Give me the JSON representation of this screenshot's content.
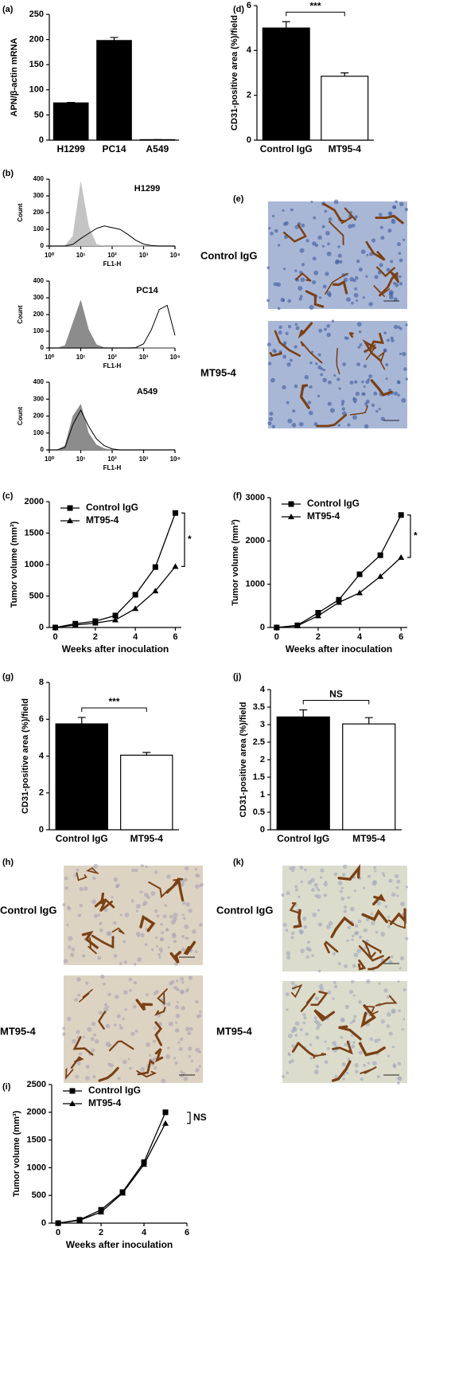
{
  "chart_data": [
    {
      "panel": "(a)",
      "type": "bar",
      "ylabel": "APN/β-actin mRNA",
      "categories": [
        "H1299",
        "PC14",
        "A549"
      ],
      "values": [
        74,
        198,
        1
      ],
      "errors": [
        1,
        6,
        0
      ],
      "colors": [
        "#000000",
        "#000000",
        "#000000"
      ],
      "ylim": [
        0,
        250
      ],
      "yticks": [
        0,
        50,
        100,
        150,
        200,
        250
      ]
    },
    {
      "panel": "(d)",
      "type": "bar",
      "ylabel": "CD31-positive area (%)/field",
      "categories": [
        "Control IgG",
        "MT95-4"
      ],
      "values": [
        5.0,
        2.85
      ],
      "errors": [
        0.28,
        0.15
      ],
      "colors": [
        "#000000",
        "#ffffff"
      ],
      "ylim": [
        0,
        6
      ],
      "yticks": [
        0,
        2,
        4,
        6
      ],
      "annotation": "***"
    },
    {
      "panel": "(b)",
      "type": "histogram",
      "title": "H1299",
      "xlabel": "FL1-H",
      "ylabel": "Count",
      "xscale": "log",
      "x": [
        1,
        1.778,
        3.162,
        5.623,
        10,
        17.78,
        31.62,
        56.23,
        100,
        177.8,
        316.2,
        562.3,
        1000,
        1778,
        3162,
        5623,
        10000
      ],
      "series": [
        {
          "color": "#c4c4c4",
          "fill": true,
          "values": [
            0,
            0,
            2,
            60,
            385,
            120,
            10,
            0,
            0,
            0,
            0,
            0,
            0,
            0,
            0,
            0,
            0
          ]
        },
        {
          "color": "#000000",
          "fill": false,
          "values": [
            0,
            0,
            0,
            10,
            45,
            75,
            105,
            120,
            110,
            100,
            70,
            35,
            12,
            3,
            0,
            0,
            0
          ]
        }
      ],
      "xlim": [
        1,
        10000
      ],
      "xticks": [
        {
          "value": 1,
          "label": "10⁰"
        },
        {
          "value": 10,
          "label": "10¹"
        },
        {
          "value": 100,
          "label": "10²"
        },
        {
          "value": 1000,
          "label": "10³"
        },
        {
          "value": 10000,
          "label": "10⁴"
        }
      ],
      "ylim": [
        0,
        400
      ],
      "yticks": [
        0,
        100,
        200,
        300,
        400
      ]
    },
    {
      "type": "histogram",
      "title": "PC14",
      "xlabel": "FL1-H",
      "ylabel": "Count",
      "xscale": "log",
      "x": [
        1,
        1.778,
        3.162,
        5.623,
        10,
        17.78,
        31.62,
        56.23,
        100,
        177.8,
        316.2,
        562.3,
        1000,
        1778,
        3162,
        5623,
        10000
      ],
      "series": [
        {
          "color": "#8c8c8c",
          "fill": true,
          "values": [
            0,
            0,
            15,
            150,
            285,
            110,
            20,
            3,
            0,
            0,
            0,
            0,
            0,
            0,
            0,
            0,
            0
          ]
        },
        {
          "color": "#000000",
          "fill": false,
          "values": [
            0,
            0,
            0,
            0,
            0,
            0,
            0,
            0,
            0,
            0,
            0,
            2,
            25,
            110,
            230,
            255,
            75
          ]
        }
      ],
      "xlim": [
        1,
        10000
      ],
      "xticks": [
        {
          "value": 1,
          "label": "10⁰"
        },
        {
          "value": 10,
          "label": "10¹"
        },
        {
          "value": 100,
          "label": "10²"
        },
        {
          "value": 1000,
          "label": "10³"
        },
        {
          "value": 10000,
          "label": "10⁴"
        }
      ],
      "ylim": [
        0,
        400
      ],
      "yticks": [
        0,
        100,
        200,
        300,
        400
      ]
    },
    {
      "type": "histogram",
      "title": "A549",
      "xlabel": "FL1-H",
      "ylabel": "Count",
      "xscale": "log",
      "x": [
        1,
        1.778,
        3.162,
        5.623,
        10,
        17.78,
        31.62,
        56.23,
        100,
        177.8,
        316.2,
        562.3,
        1000,
        1778,
        3162,
        5623,
        10000
      ],
      "series": [
        {
          "color": "#8c8c8c",
          "fill": true,
          "values": [
            0,
            0,
            25,
            200,
            270,
            100,
            30,
            8,
            0,
            0,
            0,
            0,
            0,
            0,
            0,
            0,
            0
          ]
        },
        {
          "color": "#000000",
          "fill": false,
          "values": [
            0,
            0,
            15,
            150,
            235,
            140,
            65,
            25,
            6,
            0,
            0,
            0,
            0,
            0,
            0,
            0,
            0
          ]
        }
      ],
      "xlim": [
        1,
        10000
      ],
      "xticks": [
        {
          "value": 1,
          "label": "10⁰"
        },
        {
          "value": 10,
          "label": "10¹"
        },
        {
          "value": 100,
          "label": "10²"
        },
        {
          "value": 1000,
          "label": "10³"
        },
        {
          "value": 10000,
          "label": "10⁴"
        }
      ],
      "ylim": [
        0,
        400
      ],
      "yticks": [
        0,
        100,
        200,
        300,
        400
      ]
    },
    {
      "panel": "(c)",
      "type": "line",
      "xlabel": "Weeks after inoculation",
      "ylabel": "Tumor volume (mm³)",
      "x": [
        0,
        1,
        2,
        3,
        4,
        5,
        6
      ],
      "series": [
        {
          "name": "Control IgG",
          "color": "#000000",
          "marker": "square",
          "values": [
            0,
            60,
            100,
            190,
            520,
            960,
            1820
          ]
        },
        {
          "name": "MT95-4",
          "color": "#000000",
          "marker": "triangle",
          "values": [
            0,
            40,
            70,
            120,
            300,
            580,
            970
          ]
        }
      ],
      "xlim": [
        -0.3,
        6.3
      ],
      "xticks": [
        0,
        2,
        4,
        6
      ],
      "ylim": [
        0,
        2000
      ],
      "yticks": [
        0,
        500,
        1000,
        1500,
        2000
      ],
      "annotation": "*"
    },
    {
      "panel": "(f)",
      "type": "line",
      "xlabel": "Weeks after inoculation",
      "ylabel": "Tumor volume (mm³)",
      "x": [
        0,
        1,
        2,
        3,
        4,
        5,
        6
      ],
      "series": [
        {
          "name": "Control IgG",
          "color": "#000000",
          "marker": "square",
          "values": [
            0,
            50,
            340,
            640,
            1230,
            1670,
            2600
          ]
        },
        {
          "name": "MT95-4",
          "color": "#000000",
          "marker": "triangle",
          "values": [
            0,
            40,
            270,
            580,
            800,
            1180,
            1620
          ]
        }
      ],
      "xlim": [
        -0.3,
        6.3
      ],
      "xticks": [
        0,
        2,
        4,
        6
      ],
      "ylim": [
        0,
        3000
      ],
      "yticks": [
        0,
        1000,
        2000,
        3000
      ],
      "annotation": "*"
    },
    {
      "panel": "(g)",
      "type": "bar",
      "ylabel": "CD31-positive area (%)/field",
      "categories": [
        "Control IgG",
        "MT95-4"
      ],
      "values": [
        5.75,
        4.05
      ],
      "errors": [
        0.35,
        0.15
      ],
      "colors": [
        "#000000",
        "#ffffff"
      ],
      "ylim": [
        0,
        8
      ],
      "yticks": [
        0,
        2,
        4,
        6,
        8
      ],
      "annotation": "***"
    },
    {
      "panel": "(j)",
      "type": "bar",
      "ylabel": "CD31-positive area (%)/field",
      "categories": [
        "Control IgG",
        "MT95-4"
      ],
      "values": [
        3.22,
        3.02
      ],
      "errors": [
        0.2,
        0.18
      ],
      "colors": [
        "#000000",
        "#ffffff"
      ],
      "ylim": [
        0,
        4
      ],
      "yticks": [
        0,
        0.5,
        1,
        1.5,
        2,
        2.5,
        3,
        3.5,
        4
      ],
      "annotation": "NS"
    },
    {
      "panel": "(i)",
      "type": "line",
      "xlabel": "Weeks after inoculation",
      "ylabel": "Tumor volume (mm³)",
      "x": [
        0,
        1,
        2,
        3,
        4,
        5
      ],
      "series": [
        {
          "name": "Control IgG",
          "color": "#000000",
          "marker": "square",
          "values": [
            0,
            60,
            240,
            560,
            1100,
            2000
          ]
        },
        {
          "name": "MT95-4",
          "color": "#000000",
          "marker": "triangle",
          "values": [
            0,
            50,
            200,
            540,
            1060,
            1800
          ]
        }
      ],
      "xlim": [
        -0.3,
        6
      ],
      "xticks": [
        0,
        2,
        4,
        6
      ],
      "ylim": [
        0,
        2500
      ],
      "yticks": [
        0,
        500,
        1000,
        1500,
        2000,
        2500
      ],
      "annotation": "NS"
    }
  ],
  "image_panels": [
    {
      "panel": "(e)",
      "labels": [
        "Control IgG",
        "MT95-4"
      ]
    },
    {
      "panel": "(h)",
      "labels": [
        "Control IgG",
        "MT95-4"
      ]
    },
    {
      "panel": "(k)",
      "labels": [
        "Control IgG",
        "MT95-4"
      ]
    }
  ]
}
